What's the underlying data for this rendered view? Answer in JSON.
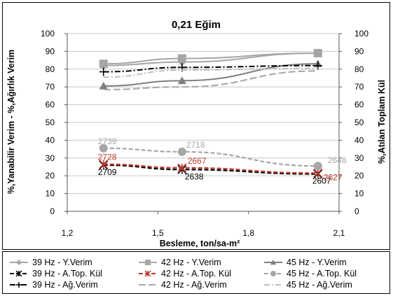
{
  "chart_data": {
    "type": "line",
    "title": "0,21 Eğim",
    "xlabel": "Besleme, ton/sa-m²",
    "ylabel_left": "%,Yanabilir Verim - %,Ağırlık Verim",
    "ylabel_right": "%,Atılan Toplam Kül",
    "xlim": [
      1.2,
      2.1
    ],
    "ylim_left": [
      0,
      100
    ],
    "ylim_right": [
      0,
      100
    ],
    "x_ticks": [
      "1,2",
      "1,5",
      "1,8",
      "2,1"
    ],
    "y_ticks_left": [
      "0",
      "10",
      "20",
      "30",
      "40",
      "50",
      "60",
      "70",
      "80",
      "90",
      "100"
    ],
    "y_ticks_right": [
      "0",
      "10",
      "20",
      "30",
      "40",
      "50",
      "60",
      "70",
      "80",
      "90",
      "100"
    ],
    "grid": "horizontal",
    "legend_position": "bottom",
    "series": [
      {
        "name": "39 Hz - Y.Verim",
        "x": [
          1.32,
          1.58,
          2.03
        ],
        "values": [
          82,
          84,
          89
        ],
        "color": "#a6a6a6",
        "dash": "solid",
        "marker": "diamond"
      },
      {
        "name": "42 Hz - Y.Verim",
        "x": [
          1.32,
          1.58,
          2.03
        ],
        "values": [
          83,
          86,
          89
        ],
        "color": "#a6a6a6",
        "dash": "solid",
        "marker": "square"
      },
      {
        "name": "45 Hz - Y.Verim",
        "x": [
          1.32,
          1.58,
          2.03
        ],
        "values": [
          70.5,
          73.5,
          83
        ],
        "color": "#7f7f7f",
        "dash": "solid",
        "marker": "triangle"
      },
      {
        "name": "39 Hz - A.Top. Kül",
        "x": [
          1.32,
          1.58,
          2.03
        ],
        "values": [
          26,
          23.5,
          21
        ],
        "color": "#000000",
        "dash": "dash",
        "marker": "star",
        "labels": [
          "2709",
          "2638",
          "2607"
        ],
        "label_color": "#000000"
      },
      {
        "name": "42 Hz - A.Top. Kül",
        "x": [
          1.32,
          1.58,
          2.03
        ],
        "values": [
          26.5,
          24.5,
          21.5
        ],
        "color": "#c0392b",
        "dash": "dash",
        "marker": "star",
        "labels": [
          "2728",
          "2667",
          "2627"
        ],
        "label_color": "#c0392b"
      },
      {
        "name": "45 Hz - A.Top. Kül",
        "x": [
          1.32,
          1.58,
          2.03
        ],
        "values": [
          35.5,
          33.5,
          25.5
        ],
        "color": "#a6a6a6",
        "dash": "dash",
        "marker": "circle",
        "labels": [
          "2739",
          "2718",
          "2648"
        ],
        "label_color": "#a6a6a6"
      },
      {
        "name": "39 Hz - Ağ.Verim",
        "x": [
          1.32,
          1.58,
          2.03
        ],
        "values": [
          78.5,
          81,
          82
        ],
        "color": "#000000",
        "dash": "dashdot",
        "marker": "plus"
      },
      {
        "name": "42 Hz - Ağ.Verim",
        "x": [
          1.32,
          1.58,
          2.03
        ],
        "values": [
          68.5,
          70,
          79
        ],
        "color": "#a6a6a6",
        "dash": "longdash",
        "marker": "none"
      },
      {
        "name": "45 Hz - Ağ.Verim",
        "x": [
          1.32,
          1.58,
          2.03
        ],
        "values": [
          75.5,
          79.5,
          80.5
        ],
        "color": "#bfbfbf",
        "dash": "dashdot",
        "marker": "none"
      }
    ]
  }
}
